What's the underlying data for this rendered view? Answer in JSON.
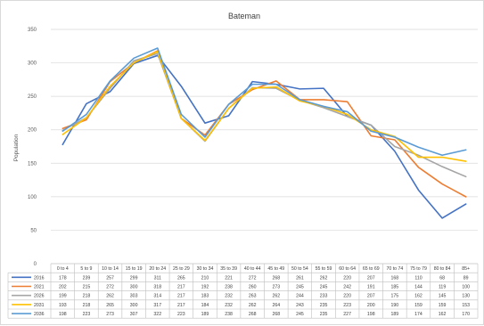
{
  "chart_data": {
    "type": "line",
    "title": "Bateman",
    "ylabel": "Population",
    "xlabel": "",
    "ylim": [
      0,
      350
    ],
    "yticks": [
      0,
      50,
      100,
      150,
      200,
      250,
      300,
      350
    ],
    "grid": true,
    "legend": "data-table-left",
    "categories": [
      "0 to 4",
      "5 to 9",
      "10 to 14",
      "15 to 19",
      "20 to 24",
      "25 to 29",
      "30 to 34",
      "35 to 39",
      "40 to 44",
      "45 to 49",
      "50 to 54",
      "55 to 59",
      "60 to 64",
      "65 to 69",
      "70 to 74",
      "75 to 79",
      "80 to 84",
      "85+"
    ],
    "series": [
      {
        "name": "2016",
        "color": "#4472c4",
        "values": [
          178,
          239,
          257,
          299,
          311,
          265,
          210,
          221,
          272,
          268,
          261,
          262,
          220,
          207,
          168,
          110,
          68,
          89
        ]
      },
      {
        "name": "2021",
        "color": "#ed7d31",
        "values": [
          202,
          215,
          272,
          300,
          318,
          217,
          192,
          238,
          260,
          273,
          245,
          245,
          242,
          191,
          185,
          144,
          119,
          100
        ]
      },
      {
        "name": "2026",
        "color": "#a5a5a5",
        "values": [
          199,
          218,
          262,
          303,
          314,
          217,
          183,
          232,
          263,
          262,
          244,
          233,
          220,
          207,
          175,
          162,
          145,
          130
        ]
      },
      {
        "name": "2031",
        "color": "#ffc000",
        "values": [
          193,
          218,
          265,
          300,
          317,
          217,
          184,
          232,
          262,
          264,
          243,
          235,
          223,
          200,
          190,
          159,
          159,
          153
        ]
      },
      {
        "name": "2036",
        "color": "#5b9bd5",
        "values": [
          198,
          223,
          273,
          307,
          322,
          223,
          189,
          238,
          268,
          268,
          245,
          235,
          227,
          198,
          189,
          174,
          162,
          170
        ]
      }
    ]
  }
}
